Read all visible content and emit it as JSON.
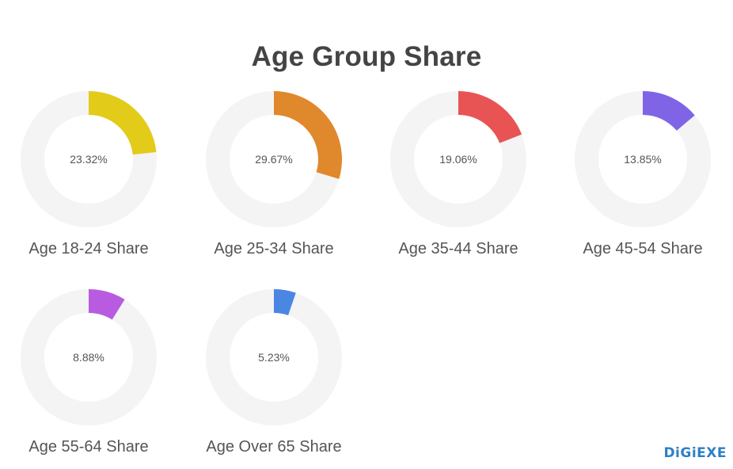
{
  "title": "Age Group Share",
  "chart_data": {
    "type": "donut",
    "title": "Age Group Share",
    "max": 100,
    "charts": [
      {
        "label": "Age 18-24 Share",
        "value": 23.32,
        "value_text": "23.32%",
        "color": "#e3cb19"
      },
      {
        "label": "Age 25-34 Share",
        "value": 29.67,
        "value_text": "29.67%",
        "color": "#e0882c"
      },
      {
        "label": "Age 35-44 Share",
        "value": 19.06,
        "value_text": "19.06%",
        "color": "#e85454"
      },
      {
        "label": "Age 45-54 Share",
        "value": 13.85,
        "value_text": "13.85%",
        "color": "#7f65e6"
      },
      {
        "label": "Age 55-64 Share",
        "value": 8.88,
        "value_text": "8.88%",
        "color": "#b95be0"
      },
      {
        "label": "Age Over 65 Share",
        "value": 5.23,
        "value_text": "5.23%",
        "color": "#4c86e3"
      }
    ],
    "track_color": "#f4f4f4"
  },
  "logo": "DiGiEXE"
}
